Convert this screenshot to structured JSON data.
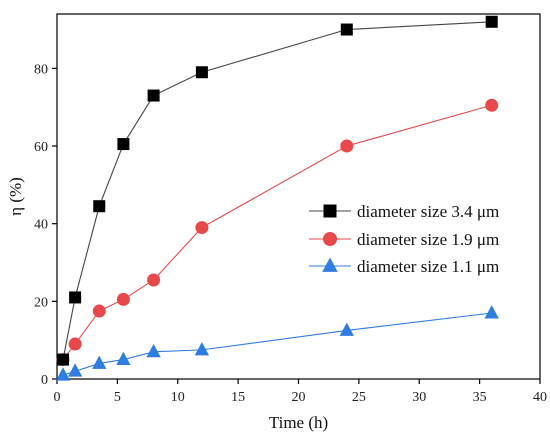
{
  "chart_data": {
    "type": "line",
    "xlabel": "Time (h)",
    "ylabel": "η (%)",
    "xlim": [
      0,
      40
    ],
    "ylim": [
      0,
      94
    ],
    "xticks": [
      0,
      5,
      10,
      15,
      20,
      25,
      30,
      35,
      40
    ],
    "yticks": [
      0,
      20,
      40,
      60,
      80
    ],
    "grid": false,
    "legend_position": "center-right",
    "series": [
      {
        "name": "diameter size 3.4 μm",
        "color": "#444444",
        "marker": "square",
        "marker_color": "#000000",
        "x": [
          0.5,
          1.5,
          3.5,
          5.5,
          8,
          12,
          24,
          36
        ],
        "y": [
          5,
          21,
          44.5,
          60.5,
          73,
          79,
          90,
          92
        ]
      },
      {
        "name": "diameter size 1.9 μm",
        "color": "#e8484a",
        "marker": "circle",
        "marker_color": "#e8484a",
        "x": [
          0.5,
          1.5,
          3.5,
          5.5,
          8,
          12,
          24,
          36
        ],
        "y": [
          5,
          9,
          17.5,
          20.5,
          25.5,
          39,
          60,
          70.5
        ]
      },
      {
        "name": "diameter size 1.1 μm",
        "color": "#2f7de1",
        "marker": "triangle",
        "marker_color": "#2f7de1",
        "x": [
          0.5,
          1.5,
          3.5,
          5.5,
          8,
          12,
          24,
          36
        ],
        "y": [
          1,
          2,
          4,
          5,
          7,
          7.5,
          12.5,
          17
        ]
      }
    ]
  }
}
